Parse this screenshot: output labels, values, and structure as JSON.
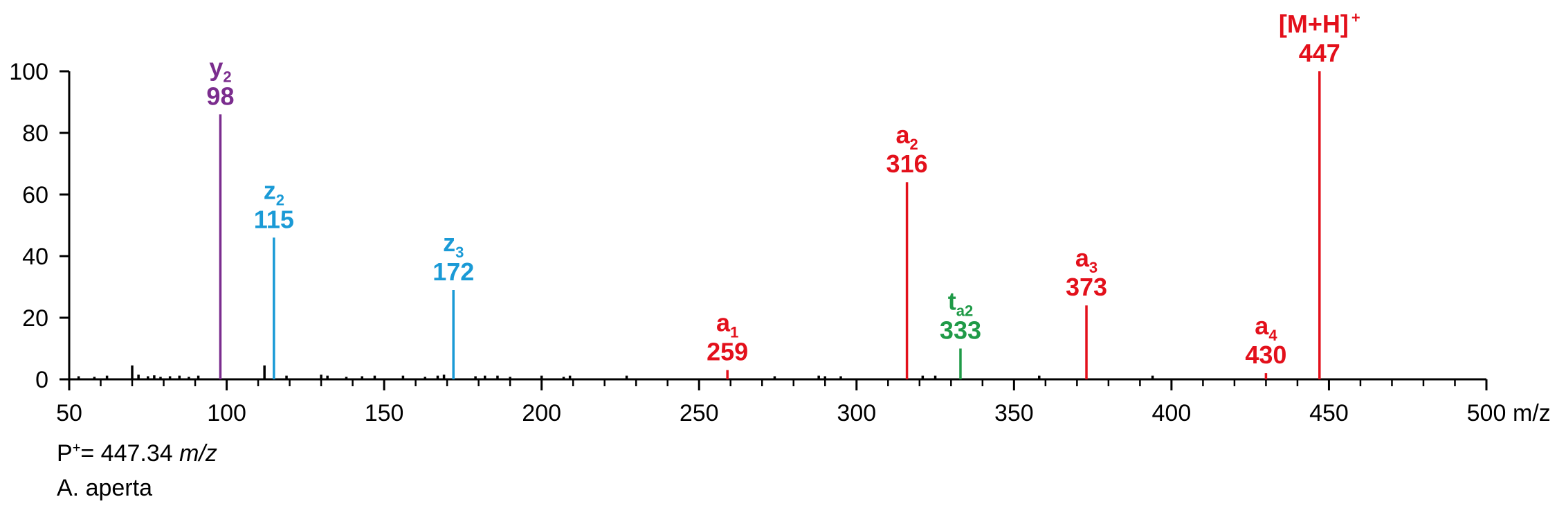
{
  "chart_data": {
    "type": "bar",
    "title": "",
    "xlabel": "m/z",
    "ylabel": "",
    "xlim": [
      50,
      500
    ],
    "ylim": [
      0,
      100
    ],
    "x_ticks": [
      50,
      100,
      150,
      200,
      250,
      300,
      350,
      400,
      450,
      500
    ],
    "y_ticks": [
      0,
      20,
      40,
      60,
      80,
      100
    ],
    "annotated_peaks": [
      {
        "ion": "y",
        "sub": "2",
        "sup": "",
        "mz": "98",
        "x": 98,
        "y": 86,
        "color": "#7b2d8e"
      },
      {
        "ion": "z",
        "sub": "2",
        "sup": "",
        "mz": "115",
        "x": 115,
        "y": 46,
        "color": "#1a9ad6"
      },
      {
        "ion": "z",
        "sub": "3",
        "sup": "",
        "mz": "172",
        "x": 172,
        "y": 29,
        "color": "#1a9ad6"
      },
      {
        "ion": "a",
        "sub": "1",
        "sup": "",
        "mz": "259",
        "x": 259,
        "y": 3,
        "color": "#e3101b"
      },
      {
        "ion": "a",
        "sub": "2",
        "sup": "",
        "mz": "316",
        "x": 316,
        "y": 64,
        "color": "#e3101b"
      },
      {
        "ion": "t",
        "sub": "a2",
        "sup": "",
        "mz": "333",
        "x": 333,
        "y": 10,
        "color": "#1f9a47"
      },
      {
        "ion": "a",
        "sub": "3",
        "sup": "",
        "mz": "373",
        "x": 373,
        "y": 24,
        "color": "#e3101b"
      },
      {
        "ion": "a",
        "sub": "4",
        "sup": "",
        "mz": "430",
        "x": 430,
        "y": 2,
        "color": "#e3101b"
      },
      {
        "ion": "[M+H]",
        "sub": "",
        "sup": "+",
        "mz": "447",
        "x": 447,
        "y": 100,
        "color": "#e3101b"
      }
    ],
    "minor_peaks": [
      {
        "x": 53,
        "y": 1
      },
      {
        "x": 58,
        "y": 0.8
      },
      {
        "x": 62,
        "y": 1.2
      },
      {
        "x": 70,
        "y": 4.5
      },
      {
        "x": 72,
        "y": 1.5
      },
      {
        "x": 75,
        "y": 1
      },
      {
        "x": 77,
        "y": 1.3
      },
      {
        "x": 79,
        "y": 0.8
      },
      {
        "x": 82,
        "y": 1
      },
      {
        "x": 85,
        "y": 1.2
      },
      {
        "x": 88,
        "y": 0.8
      },
      {
        "x": 91,
        "y": 1.2
      },
      {
        "x": 112,
        "y": 4.5
      },
      {
        "x": 119,
        "y": 1.2
      },
      {
        "x": 130,
        "y": 1.5
      },
      {
        "x": 132,
        "y": 1.2
      },
      {
        "x": 138,
        "y": 0.8
      },
      {
        "x": 143,
        "y": 1
      },
      {
        "x": 147,
        "y": 1.2
      },
      {
        "x": 156,
        "y": 1.2
      },
      {
        "x": 163,
        "y": 0.8
      },
      {
        "x": 167,
        "y": 1.2
      },
      {
        "x": 169,
        "y": 1.5
      },
      {
        "x": 179,
        "y": 1
      },
      {
        "x": 182,
        "y": 1.2
      },
      {
        "x": 186,
        "y": 1.2
      },
      {
        "x": 190,
        "y": 0.8
      },
      {
        "x": 200,
        "y": 1.2
      },
      {
        "x": 207,
        "y": 0.8
      },
      {
        "x": 209,
        "y": 1.2
      },
      {
        "x": 227,
        "y": 1.2
      },
      {
        "x": 274,
        "y": 1
      },
      {
        "x": 288,
        "y": 1.2
      },
      {
        "x": 290,
        "y": 1
      },
      {
        "x": 295,
        "y": 1
      },
      {
        "x": 321,
        "y": 1.2
      },
      {
        "x": 325,
        "y": 1.2
      },
      {
        "x": 358,
        "y": 1.2
      },
      {
        "x": 394,
        "y": 1.2
      }
    ],
    "colors": {
      "axis": "#000000",
      "minor_peaks": "#000000"
    }
  },
  "captions": {
    "precursor_prefix": "P",
    "precursor_sup": "+",
    "precursor_value": "= 447.34 ",
    "precursor_unit": "m/z",
    "species": "A. aperta"
  }
}
